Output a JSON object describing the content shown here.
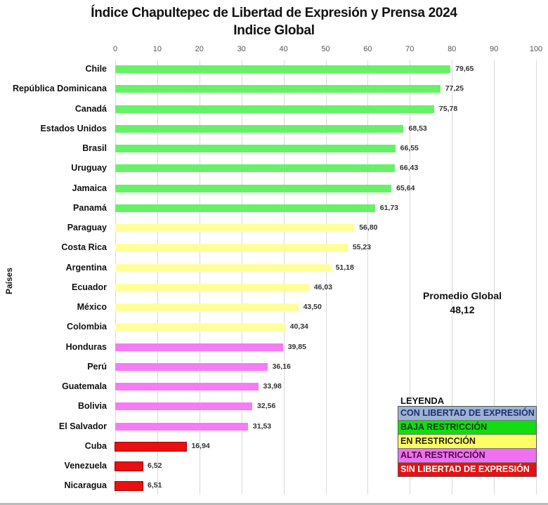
{
  "title": "Índice Chapultepec de Libertad de Expresión y Prensa 2024",
  "subtitle": "Indice Global",
  "y_axis_label": "Países",
  "average": {
    "label": "Promedio Global",
    "value": "48,12"
  },
  "legend": {
    "title": "LEYENDA",
    "items": [
      {
        "label": "CON LIBERTAD DE EXPRESIÓN",
        "bg": "#9db3d6",
        "fg": "#1f2f6b"
      },
      {
        "label": "BAJA RESTRICCIÓN",
        "bg": "#11dd11",
        "fg": "#0a3a0a"
      },
      {
        "label": "EN RESTRICCIÓN",
        "bg": "#ffff66",
        "fg": "#222200"
      },
      {
        "label": "ALTA RESTRICCIÓN",
        "bg": "#f070f0",
        "fg": "#4a0a4a"
      },
      {
        "label": "SIN LIBERTAD DE EXPRESIÓN",
        "bg": "#e81010",
        "fg": "#ffffff"
      }
    ]
  },
  "colors": {
    "baja": "#66f266",
    "en": "#ffff99",
    "alta": "#f57cf5",
    "sin": "#e81010"
  },
  "chart_data": {
    "type": "bar",
    "orientation": "horizontal",
    "title": "Índice Chapultepec de Libertad de Expresión y Prensa 2024",
    "subtitle": "Indice Global",
    "xlabel": "",
    "ylabel": "Países",
    "xlim": [
      0,
      100
    ],
    "x_ticks": [
      "0",
      "10",
      "20",
      "30",
      "40",
      "50",
      "60",
      "70",
      "80",
      "90",
      "100"
    ],
    "grid": true,
    "legend_position": "bottom-right",
    "annotation": "Promedio Global 48,12",
    "categories": [
      "Chile",
      "República Dominicana",
      "Canadá",
      "Estados Unidos",
      "Brasil",
      "Uruguay",
      "Jamaica",
      "Panamá",
      "Paraguay",
      "Costa Rica",
      "Argentina",
      "Ecuador",
      "México",
      "Colombia",
      "Honduras",
      "Perú",
      "Guatemala",
      "Bolivia",
      "El Salvador",
      "Cuba",
      "Venezuela",
      "Nicaragua"
    ],
    "values": [
      79.65,
      77.25,
      75.78,
      68.53,
      66.55,
      66.43,
      65.64,
      61.73,
      56.8,
      55.23,
      51.18,
      46.03,
      43.5,
      40.34,
      39.85,
      36.16,
      33.98,
      32.56,
      31.53,
      16.94,
      6.52,
      6.51
    ],
    "labels": [
      "79,65",
      "77,25",
      "75,78",
      "68,53",
      "66,55",
      "66,43",
      "65,64",
      "61,73",
      "56,80",
      "55,23",
      "51,18",
      "46,03",
      "43,50",
      "40,34",
      "39,85",
      "36,16",
      "33,98",
      "32,56",
      "31,53",
      "16,94",
      "6,52",
      "6,51"
    ],
    "category_class": [
      "baja",
      "baja",
      "baja",
      "baja",
      "baja",
      "baja",
      "baja",
      "baja",
      "en",
      "en",
      "en",
      "en",
      "en",
      "en",
      "alta",
      "alta",
      "alta",
      "alta",
      "alta",
      "sin",
      "sin",
      "sin"
    ]
  }
}
